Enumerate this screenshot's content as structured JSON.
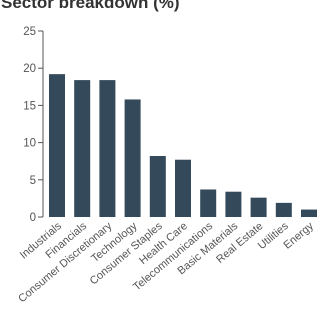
{
  "chart_data": {
    "type": "bar",
    "title": "Sector breakdown (%)",
    "categories": [
      "Industrials",
      "Financials",
      "Consumer Discretionary",
      "Technology",
      "Consumer Staples",
      "Health Care",
      "Telecommunications",
      "Basic Materials",
      "Real Estate",
      "Utilities",
      "Energy"
    ],
    "values": [
      19.2,
      18.4,
      18.4,
      15.8,
      8.2,
      7.7,
      3.7,
      3.4,
      2.6,
      1.9,
      1.0
    ],
    "ylim": [
      0,
      25
    ],
    "yticks": [
      0,
      5,
      10,
      15,
      20,
      25
    ],
    "xlabel": "",
    "ylabel": "",
    "grid": false,
    "legend": "none",
    "bar_color": "#34495a",
    "axis_color": "#555555"
  }
}
